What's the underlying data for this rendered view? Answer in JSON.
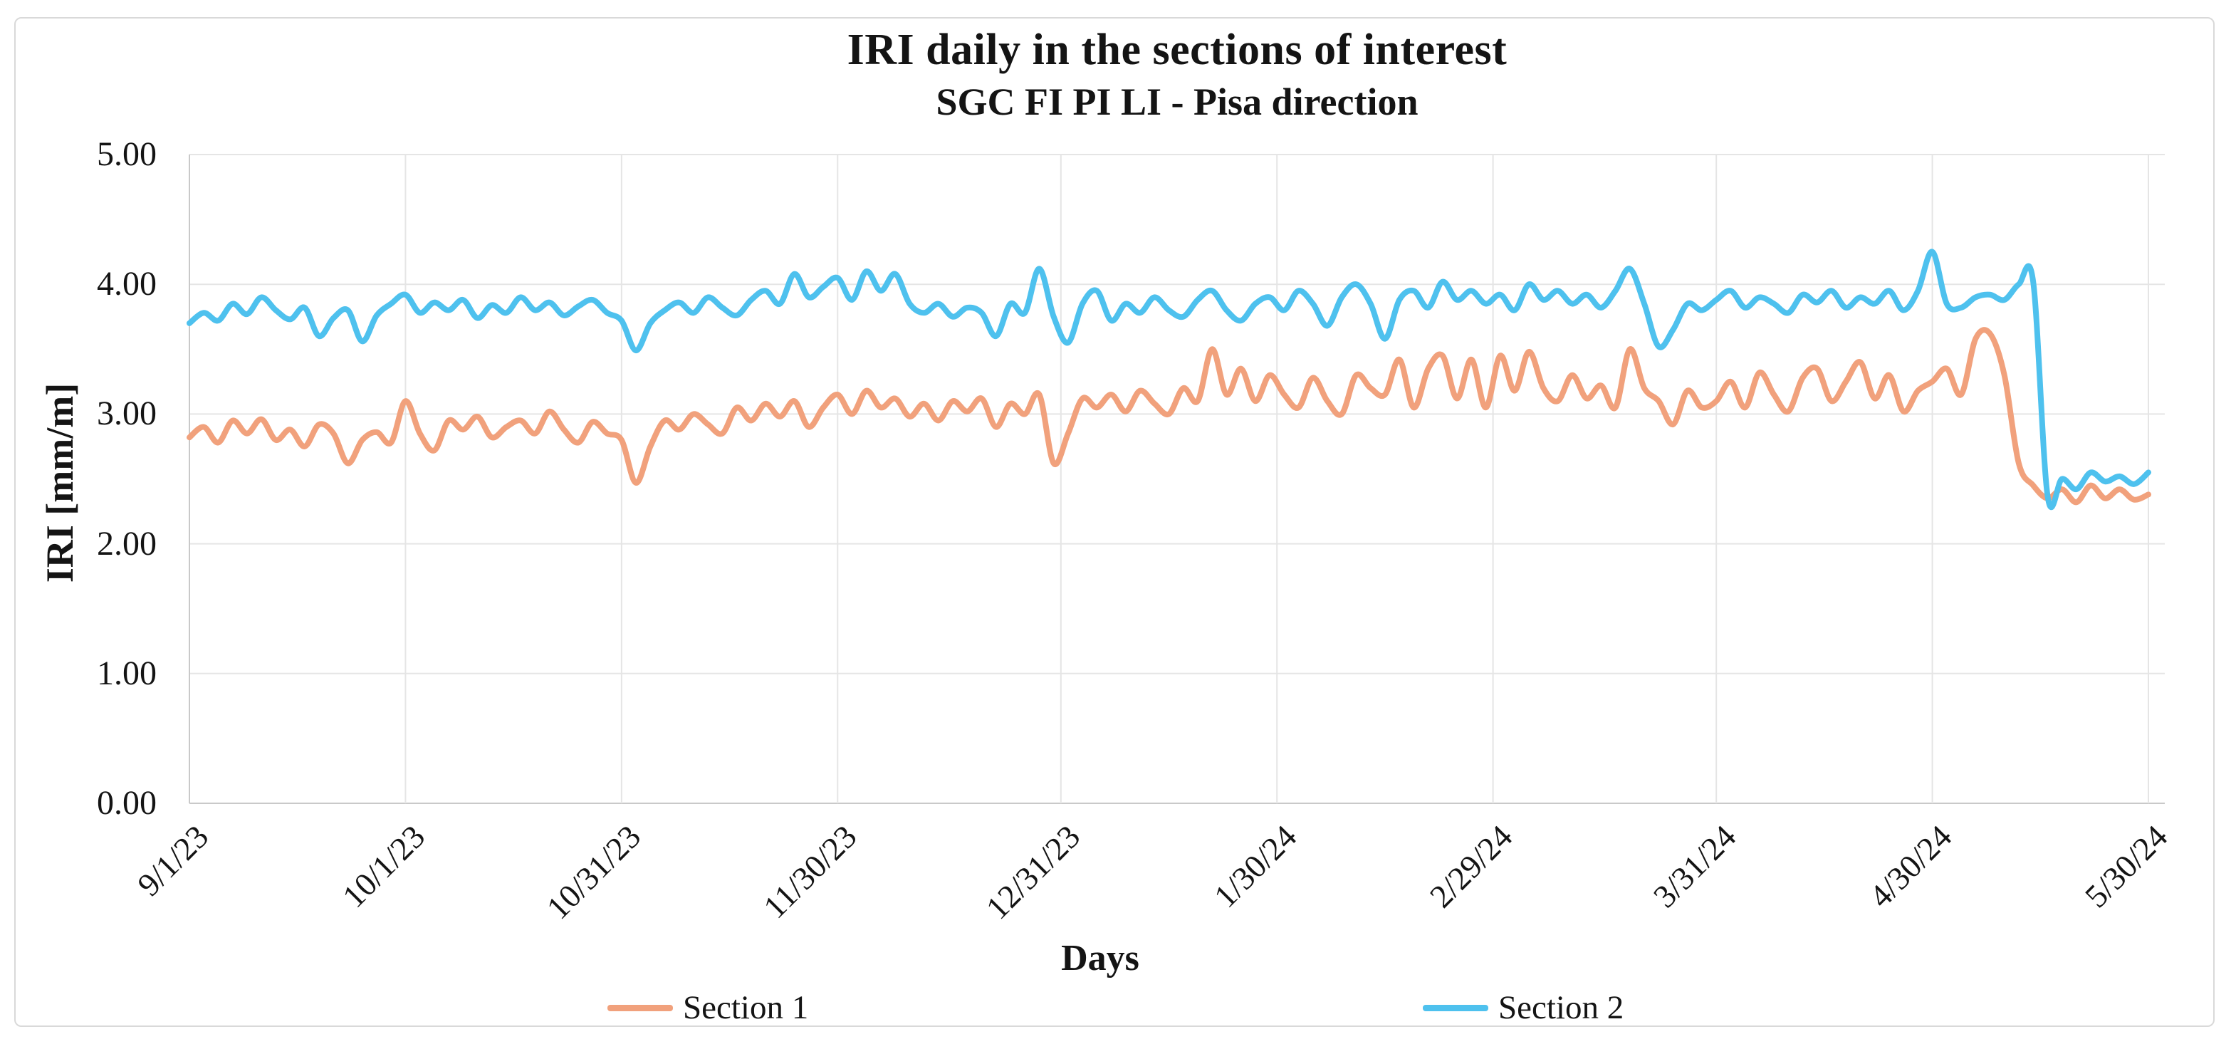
{
  "page": {
    "background_color": "#FFFFFF",
    "frame_border_color": "#D9D9D9"
  },
  "chart": {
    "title": "IRI daily in the sections of interest",
    "subtitle": "SGC FI PI LI - Pisa direction",
    "x_axis_title": "Days",
    "y_axis_title": "IRI [mm/m]",
    "gridline_color": "#E5E5E5",
    "axis_line_color": "#C9C9C9",
    "legend": [
      {
        "label": "Section 1",
        "color": "#F1A17C"
      },
      {
        "label": "Section 2",
        "color": "#4EC1EE"
      }
    ]
  },
  "chart_data": {
    "type": "line",
    "title": "IRI daily in the sections of interest",
    "subtitle": "SGC FI PI LI - Pisa direction",
    "xlabel": "Days",
    "ylabel": "IRI [mm/m]",
    "ylim": [
      0,
      5
    ],
    "grid": true,
    "legend_position": "bottom",
    "y_ticks": [
      {
        "label": "0.00",
        "value": 0
      },
      {
        "label": "1.00",
        "value": 1
      },
      {
        "label": "2.00",
        "value": 2
      },
      {
        "label": "3.00",
        "value": 3
      },
      {
        "label": "4.00",
        "value": 4
      },
      {
        "label": "5.00",
        "value": 5
      }
    ],
    "x_ticks": [
      {
        "label": "9/1/23",
        "day": 0
      },
      {
        "label": "10/1/23",
        "day": 30
      },
      {
        "label": "10/31/23",
        "day": 60
      },
      {
        "label": "11/30/23",
        "day": 90
      },
      {
        "label": "12/31/23",
        "day": 121
      },
      {
        "label": "1/30/24",
        "day": 151
      },
      {
        "label": "2/29/24",
        "day": 181
      },
      {
        "label": "3/31/24",
        "day": 212
      },
      {
        "label": "4/30/24",
        "day": 242
      },
      {
        "label": "5/30/24",
        "day": 272
      }
    ],
    "x_start_label": "9/1/23",
    "x_total_days": 272,
    "x_step_days": 2,
    "series": [
      {
        "name": "Section 1",
        "color": "#F1A17C",
        "values": [
          2.82,
          2.9,
          2.78,
          2.95,
          2.85,
          2.96,
          2.8,
          2.88,
          2.75,
          2.92,
          2.85,
          2.62,
          2.8,
          2.86,
          2.78,
          3.1,
          2.85,
          2.72,
          2.95,
          2.88,
          2.98,
          2.82,
          2.9,
          2.95,
          2.85,
          3.02,
          2.88,
          2.78,
          2.94,
          2.85,
          2.8,
          2.47,
          2.75,
          2.95,
          2.88,
          3.0,
          2.92,
          2.85,
          3.05,
          2.95,
          3.08,
          2.98,
          3.1,
          2.9,
          3.05,
          3.15,
          3.0,
          3.18,
          3.05,
          3.12,
          2.98,
          3.08,
          2.95,
          3.1,
          3.02,
          3.12,
          2.9,
          3.08,
          3.0,
          3.15,
          2.62,
          2.85,
          3.12,
          3.05,
          3.15,
          3.02,
          3.18,
          3.08,
          3.0,
          3.2,
          3.1,
          3.5,
          3.15,
          3.35,
          3.1,
          3.3,
          3.15,
          3.05,
          3.28,
          3.1,
          3.0,
          3.3,
          3.2,
          3.15,
          3.42,
          3.05,
          3.35,
          3.45,
          3.12,
          3.42,
          3.05,
          3.45,
          3.18,
          3.48,
          3.2,
          3.1,
          3.3,
          3.12,
          3.22,
          3.05,
          3.5,
          3.2,
          3.1,
          2.92,
          3.18,
          3.05,
          3.1,
          3.25,
          3.05,
          3.32,
          3.15,
          3.02,
          3.28,
          3.35,
          3.1,
          3.25,
          3.4,
          3.12,
          3.3,
          3.02,
          3.18,
          3.25,
          3.35,
          3.15,
          3.58,
          3.62,
          3.3,
          2.62,
          2.45,
          2.35,
          2.42,
          2.32,
          2.45,
          2.35,
          2.42,
          2.34,
          2.38
        ]
      },
      {
        "name": "Section 2",
        "color": "#4EC1EE",
        "values": [
          3.7,
          3.78,
          3.72,
          3.85,
          3.77,
          3.9,
          3.8,
          3.73,
          3.82,
          3.6,
          3.74,
          3.8,
          3.56,
          3.76,
          3.85,
          3.92,
          3.78,
          3.86,
          3.8,
          3.88,
          3.74,
          3.84,
          3.78,
          3.9,
          3.8,
          3.86,
          3.76,
          3.83,
          3.88,
          3.78,
          3.72,
          3.49,
          3.7,
          3.8,
          3.86,
          3.78,
          3.9,
          3.82,
          3.76,
          3.88,
          3.95,
          3.85,
          4.08,
          3.9,
          3.98,
          4.05,
          3.88,
          4.1,
          3.95,
          4.08,
          3.85,
          3.78,
          3.85,
          3.75,
          3.82,
          3.78,
          3.6,
          3.85,
          3.78,
          4.12,
          3.75,
          3.55,
          3.85,
          3.95,
          3.72,
          3.85,
          3.78,
          3.9,
          3.8,
          3.75,
          3.88,
          3.95,
          3.8,
          3.72,
          3.85,
          3.9,
          3.8,
          3.95,
          3.85,
          3.68,
          3.9,
          4.0,
          3.85,
          3.58,
          3.88,
          3.95,
          3.82,
          4.02,
          3.88,
          3.95,
          3.85,
          3.92,
          3.8,
          4.0,
          3.88,
          3.95,
          3.85,
          3.92,
          3.82,
          3.95,
          4.12,
          3.85,
          3.52,
          3.65,
          3.85,
          3.8,
          3.88,
          3.95,
          3.82,
          3.9,
          3.85,
          3.78,
          3.92,
          3.86,
          3.95,
          3.82,
          3.9,
          3.85,
          3.95,
          3.8,
          3.95,
          4.25,
          3.85,
          3.82,
          3.9,
          3.92,
          3.88,
          4.0,
          4.02,
          2.37,
          2.5,
          2.42,
          2.55,
          2.48,
          2.52,
          2.46,
          2.55
        ]
      }
    ]
  }
}
